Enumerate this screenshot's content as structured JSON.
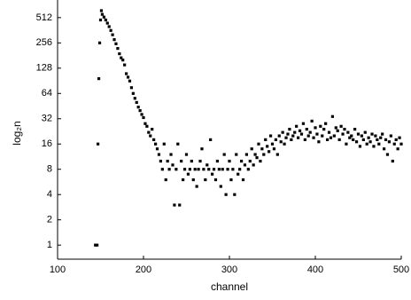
{
  "chart_data": {
    "type": "scatter",
    "x_label": "channel",
    "y_label": "log₂n",
    "xlim": [
      100,
      500
    ],
    "xticks": [
      100,
      200,
      300,
      400,
      500
    ],
    "ylim": [
      0.68,
      830
    ],
    "yticks": [
      1,
      2,
      4,
      8,
      16,
      32,
      64,
      128,
      256,
      512
    ],
    "log_scale_y": true,
    "log_base": 2,
    "color": "#000000",
    "x": [
      144,
      146,
      147,
      148,
      149,
      150,
      151,
      152,
      154,
      156,
      158,
      160,
      162,
      164,
      166,
      168,
      170,
      172,
      174,
      176,
      178,
      180,
      182,
      184,
      186,
      188,
      190,
      192,
      194,
      196,
      198,
      200,
      202,
      204,
      206,
      208,
      210,
      212,
      214,
      216,
      218,
      220,
      222,
      224,
      226,
      228,
      230,
      232,
      234,
      236,
      238,
      240,
      242,
      244,
      246,
      248,
      250,
      252,
      254,
      256,
      258,
      260,
      262,
      264,
      266,
      268,
      270,
      272,
      274,
      276,
      278,
      280,
      282,
      284,
      286,
      288,
      290,
      292,
      294,
      296,
      298,
      300,
      302,
      304,
      306,
      308,
      310,
      312,
      314,
      316,
      318,
      320,
      322,
      324,
      326,
      328,
      330,
      332,
      334,
      336,
      338,
      340,
      342,
      344,
      346,
      348,
      350,
      352,
      354,
      356,
      358,
      360,
      362,
      364,
      366,
      368,
      370,
      372,
      374,
      376,
      378,
      380,
      382,
      384,
      386,
      388,
      390,
      392,
      394,
      396,
      398,
      400,
      402,
      404,
      406,
      408,
      410,
      412,
      414,
      416,
      418,
      420,
      422,
      424,
      426,
      428,
      430,
      432,
      434,
      436,
      438,
      440,
      442,
      444,
      446,
      448,
      450,
      452,
      454,
      456,
      458,
      460,
      462,
      464,
      466,
      468,
      470,
      472,
      474,
      476,
      478,
      480,
      482,
      484,
      486,
      488,
      490,
      492,
      494,
      496,
      498,
      500
    ],
    "values": [
      1,
      1,
      16,
      96,
      256,
      480,
      620,
      560,
      520,
      480,
      440,
      400,
      360,
      320,
      280,
      250,
      220,
      190,
      170,
      160,
      140,
      110,
      100,
      90,
      75,
      64,
      56,
      50,
      44,
      40,
      36,
      33,
      28,
      26,
      22,
      20,
      24,
      18,
      16,
      14,
      12,
      10,
      8,
      16,
      6,
      10,
      8,
      12,
      9,
      3,
      8,
      16,
      3,
      10,
      6,
      8,
      12,
      7,
      8,
      10,
      6,
      8,
      5,
      8,
      10,
      14,
      8,
      6,
      9,
      8,
      18,
      7,
      8,
      6,
      10,
      8,
      5,
      8,
      12,
      4,
      8,
      10,
      6,
      8,
      4,
      12,
      7,
      8,
      10,
      6,
      9,
      12,
      8,
      10,
      14,
      9,
      12,
      11,
      16,
      10,
      14,
      12,
      18,
      15,
      13,
      20,
      16,
      14,
      18,
      12,
      20,
      17,
      22,
      16,
      19,
      21,
      24,
      18,
      20,
      22,
      26,
      19,
      23,
      21,
      28,
      18,
      24,
      20,
      22,
      30,
      19,
      25,
      21,
      17,
      26,
      20,
      24,
      28,
      18,
      22,
      19,
      34,
      20,
      25,
      23,
      18,
      26,
      21,
      24,
      16,
      22,
      19,
      20,
      18,
      24,
      17,
      21,
      15,
      20,
      18,
      22,
      16,
      19,
      17,
      21,
      15,
      20,
      18,
      16,
      19,
      21,
      14,
      18,
      12,
      17,
      20,
      10,
      16,
      18,
      14,
      19,
      16
    ]
  }
}
